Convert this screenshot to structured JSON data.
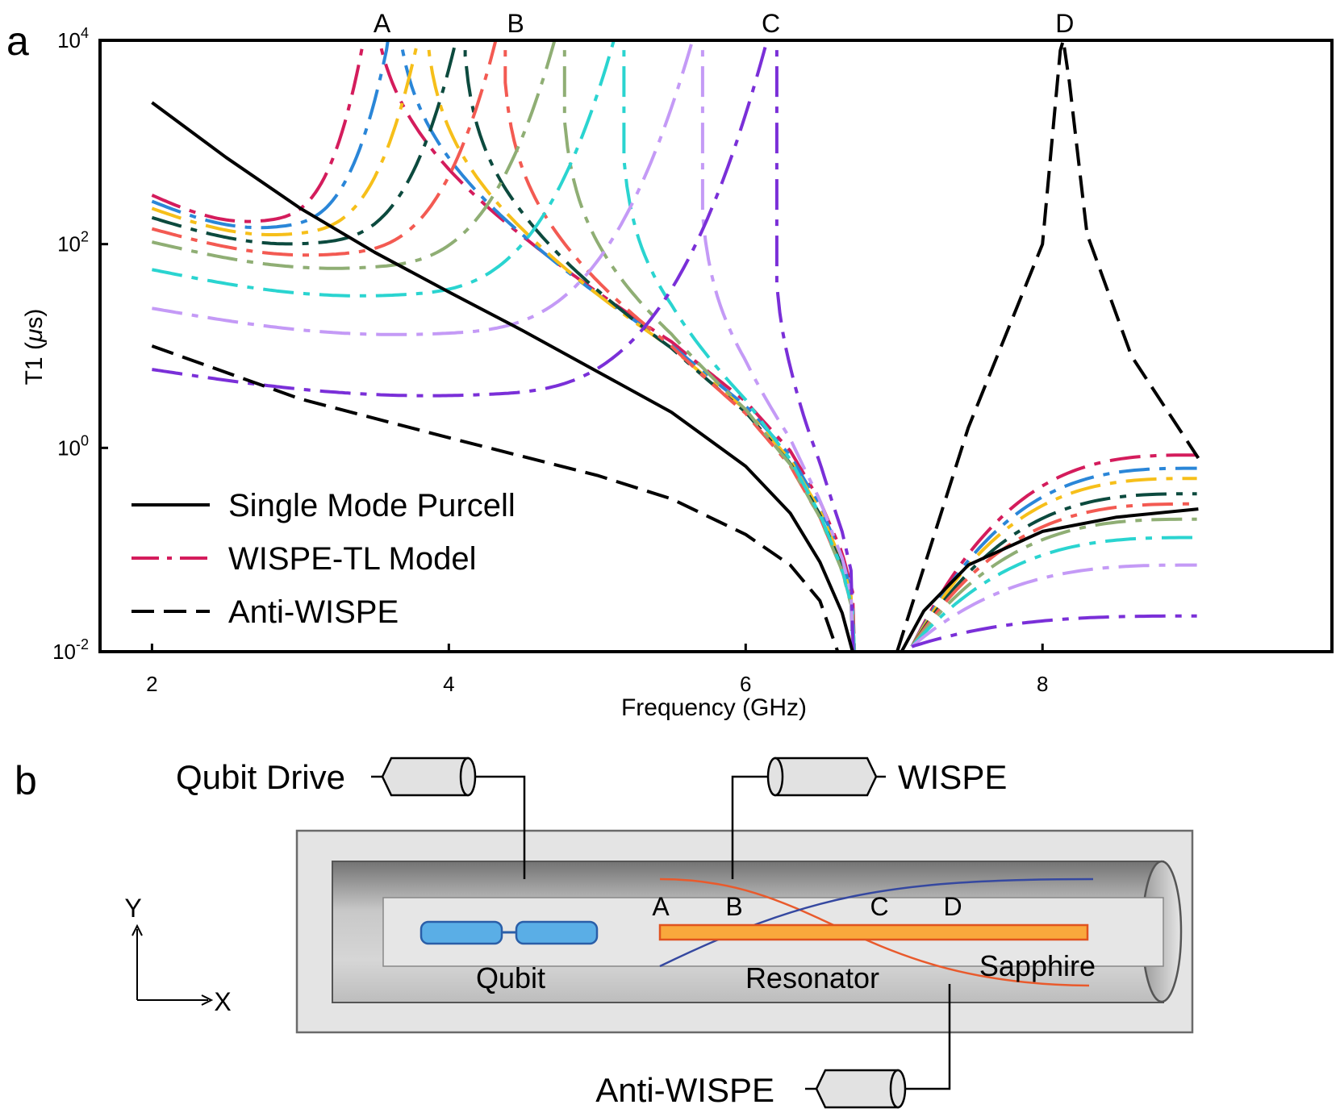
{
  "panel_a": {
    "letter": "a"
  },
  "panel_b": {
    "letter": "b"
  },
  "chart_data": {
    "type": "line",
    "xlabel": "Frequency (GHz)",
    "ylabel_prefix": "T1 (",
    "ylabel_mu": "μ",
    "ylabel_suffix": "s)",
    "xlim": [
      1.65,
      9.95
    ],
    "ylim_log10": [
      -2,
      4
    ],
    "y_scale": "log",
    "x_ticks": [
      2,
      4,
      6,
      8
    ],
    "y_ticks": [
      {
        "base": "10",
        "exp": "-2",
        "value": -2
      },
      {
        "base": "10",
        "exp": "0",
        "value": 0
      },
      {
        "base": "10",
        "exp": "2",
        "value": 2
      },
      {
        "base": "10",
        "exp": "4",
        "value": 4
      }
    ],
    "top_markers": [
      {
        "label": "A",
        "x": 3.55
      },
      {
        "label": "B",
        "x": 4.45
      },
      {
        "label": "C",
        "x": 6.17
      },
      {
        "label": "D",
        "x": 8.15
      }
    ],
    "legend": [
      {
        "label": "Single Mode Purcell",
        "style": "solid",
        "color": "#000000"
      },
      {
        "label": "WISPE-TL Model",
        "style": "dashdot",
        "color": "#d41c5c"
      },
      {
        "label": "Anti-WISPE",
        "style": "dashed",
        "color": "#000000"
      }
    ],
    "purcell": {
      "points": [
        [
          2.0,
          3.39
        ],
        [
          2.5,
          2.85
        ],
        [
          3.0,
          2.35
        ],
        [
          3.5,
          1.92
        ],
        [
          4.0,
          1.53
        ],
        [
          4.5,
          1.15
        ],
        [
          5.0,
          0.75
        ],
        [
          5.5,
          0.35
        ],
        [
          6.0,
          -0.18
        ],
        [
          6.3,
          -0.64
        ],
        [
          6.5,
          -1.12
        ],
        [
          6.65,
          -1.62
        ],
        [
          6.72,
          -2.0
        ]
      ],
      "right_points": [
        [
          7.05,
          -2.0
        ],
        [
          7.2,
          -1.6
        ],
        [
          7.5,
          -1.15
        ],
        [
          8.0,
          -0.82
        ],
        [
          8.5,
          -0.68
        ],
        [
          9.05,
          -0.6
        ]
      ]
    },
    "anti_wispe": {
      "left_points": [
        [
          2.0,
          1.0
        ],
        [
          3.0,
          0.48
        ],
        [
          4.0,
          0.1
        ],
        [
          5.0,
          -0.27
        ],
        [
          5.5,
          -0.5
        ],
        [
          6.0,
          -0.85
        ],
        [
          6.3,
          -1.15
        ],
        [
          6.5,
          -1.5
        ],
        [
          6.62,
          -2.0
        ]
      ],
      "right_points": [
        [
          7.02,
          -2.0
        ],
        [
          7.5,
          0.2
        ],
        [
          8.0,
          2.0
        ],
        [
          8.12,
          3.9
        ],
        [
          8.14,
          4.0
        ],
        [
          8.18,
          3.6
        ],
        [
          8.3,
          2.1
        ],
        [
          8.6,
          0.9
        ],
        [
          9.05,
          -0.1
        ]
      ]
    },
    "series": [
      {
        "color": "#d41c5c",
        "peak": 3.45,
        "low": 2.48,
        "right_end": -0.07
      },
      {
        "color": "#2a86d8",
        "peak": 3.62,
        "low": 2.42,
        "right_end": -0.2
      },
      {
        "color": "#f6bf1a",
        "peak": 3.82,
        "low": 2.35,
        "right_end": -0.3
      },
      {
        "color": "#0c4a3e",
        "peak": 4.08,
        "low": 2.26,
        "right_end": -0.45
      },
      {
        "color": "#f35a52",
        "peak": 4.35,
        "low": 2.15,
        "right_end": -0.55
      },
      {
        "color": "#8fae74",
        "peak": 4.75,
        "low": 2.02,
        "right_end": -0.7
      },
      {
        "color": "#2ad4d0",
        "peak": 5.15,
        "low": 1.75,
        "right_end": -0.88
      },
      {
        "color": "#c49af6",
        "peak": 5.68,
        "low": 1.37,
        "right_end": -1.15
      },
      {
        "color": "#7a2fd8",
        "peak": 6.18,
        "low": 0.77,
        "right_end": -1.65
      }
    ]
  },
  "diagram": {
    "qubit_drive": "Qubit Drive",
    "wispe": "WISPE",
    "anti_wispe": "Anti-WISPE",
    "qubit": "Qubit",
    "resonator": "Resonator",
    "sapphire": "Sapphire",
    "pos_A": "A",
    "pos_B": "B",
    "pos_C": "C",
    "pos_D": "D",
    "axis_y": "Y",
    "axis_x": "X",
    "colors": {
      "resonator_fill": "#f9a83c",
      "resonator_edge": "#e0531f",
      "qubit_fill": "#5aaee6",
      "qubit_edge": "#2a5ea8",
      "wave_orange": "#e95a2c",
      "wave_blue": "#3548a0"
    }
  }
}
